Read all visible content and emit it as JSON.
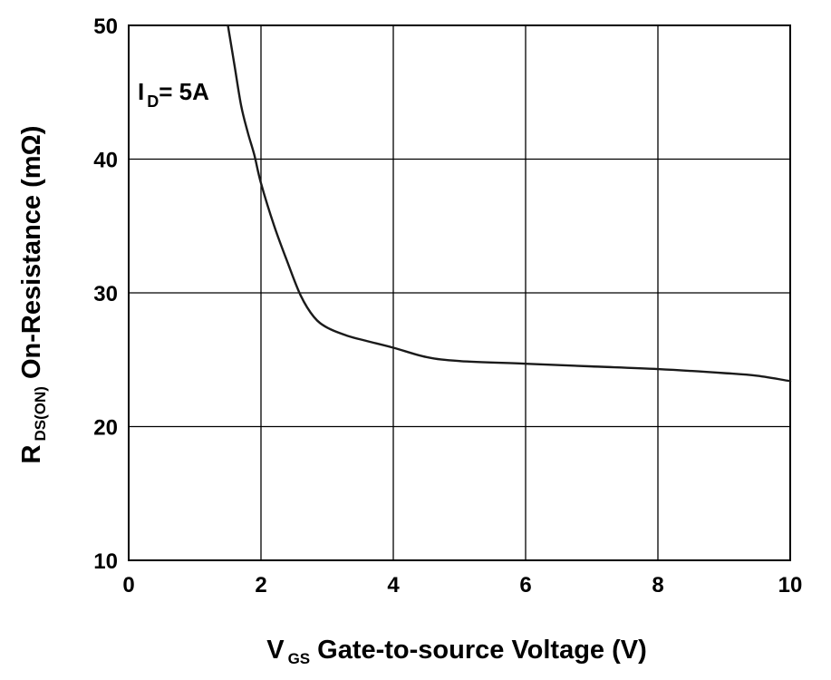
{
  "chart_data": {
    "type": "line",
    "xlabel": {
      "symbol": "V",
      "subscript": "GS",
      "text": "Gate-to-source Voltage (V)"
    },
    "ylabel": {
      "symbol": "R",
      "subscript": "DS(ON)",
      "text": "On-Resistance (mΩ)"
    },
    "xlim": [
      0,
      10
    ],
    "ylim": [
      10,
      50
    ],
    "xticks": [
      0,
      2,
      4,
      6,
      8,
      10
    ],
    "yticks": [
      10,
      20,
      30,
      40,
      50
    ],
    "grid": true,
    "annotation": {
      "symbol": "I",
      "subscript": "D",
      "text": "= 5A"
    },
    "series": [
      {
        "x": [
          1.5,
          1.6,
          1.7,
          1.8,
          1.9,
          2.0,
          2.2,
          2.4,
          2.6,
          2.8,
          3.0,
          3.3,
          3.6,
          4.0,
          4.5,
          5.0,
          6.0,
          7.0,
          8.0,
          9.0,
          9.5,
          10.0
        ],
        "y": [
          50.0,
          47.0,
          44.0,
          42.0,
          40.3,
          38.2,
          35.0,
          32.3,
          29.8,
          28.2,
          27.4,
          26.8,
          26.4,
          25.9,
          25.2,
          24.9,
          24.7,
          24.5,
          24.3,
          24.0,
          23.8,
          23.4
        ]
      }
    ],
    "colors": {
      "line": "#1a1a1a",
      "grid": "#000000",
      "background": "#ffffff"
    }
  }
}
